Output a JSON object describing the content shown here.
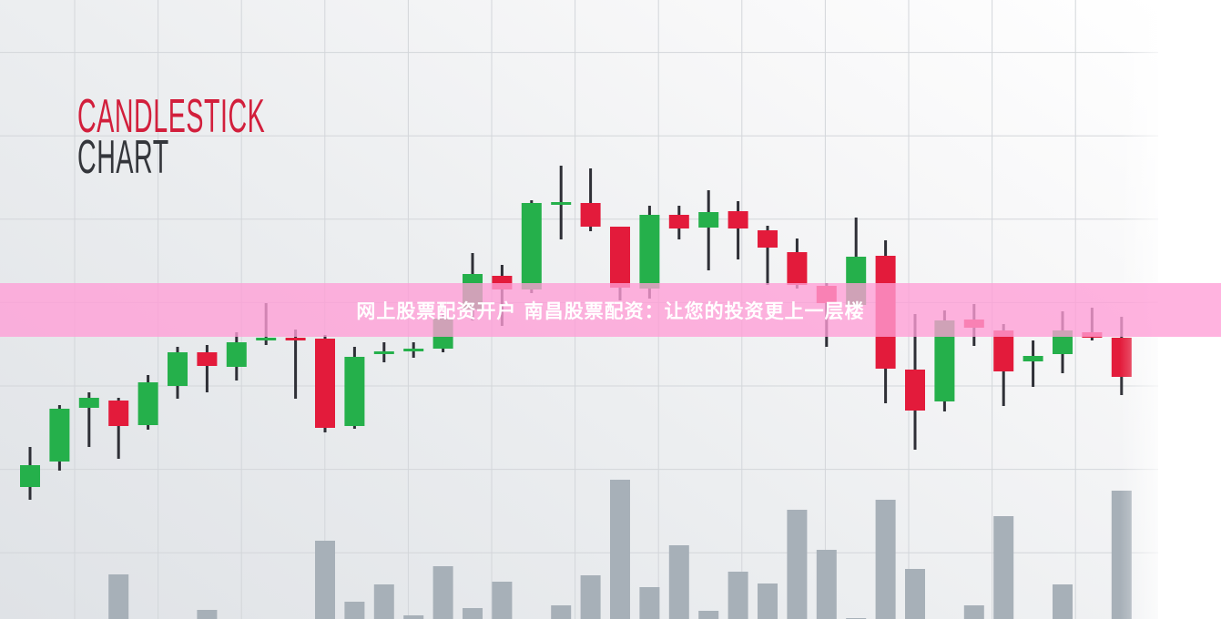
{
  "heading": {
    "line1": "CANDLESTICK",
    "line2": "CHART"
  },
  "banner": {
    "text": "网上股票配资开户 南昌股票配资：让您的投资更上一层楼"
  },
  "colors": {
    "up": "#25b04b",
    "down": "#e31b3b",
    "wick": "#2e2f36",
    "volume": "#a7b0b8",
    "grid": "#d3d6da",
    "title_red": "#d21f3c",
    "banner": "#ff9ed6"
  },
  "chart_data": {
    "type": "candlestick",
    "title": "CANDLESTICK CHART",
    "xlabel": "",
    "ylabel": "",
    "grid": true,
    "ylim": [
      0,
      70
    ],
    "candles": [
      {
        "o": 16.5,
        "h": 20.9,
        "l": 15.1,
        "c": 18.9
      },
      {
        "o": 19.3,
        "h": 25.5,
        "l": 18.3,
        "c": 25.1
      },
      {
        "o": 25.2,
        "h": 26.9,
        "l": 20.9,
        "c": 26.3
      },
      {
        "o": 26.0,
        "h": 26.3,
        "l": 19.6,
        "c": 23.2
      },
      {
        "o": 23.3,
        "h": 28.8,
        "l": 22.8,
        "c": 28.0
      },
      {
        "o": 27.6,
        "h": 31.9,
        "l": 26.2,
        "c": 31.3
      },
      {
        "o": 31.3,
        "h": 32.1,
        "l": 26.9,
        "c": 29.8
      },
      {
        "o": 29.7,
        "h": 33.5,
        "l": 28.2,
        "c": 32.4
      },
      {
        "o": 32.6,
        "h": 36.7,
        "l": 32.1,
        "c": 32.9
      },
      {
        "o": 32.9,
        "h": 33.8,
        "l": 26.2,
        "c": 32.6
      },
      {
        "o": 32.8,
        "h": 33.2,
        "l": 22.5,
        "c": 23.0
      },
      {
        "o": 23.2,
        "h": 31.9,
        "l": 22.9,
        "c": 30.8
      },
      {
        "o": 31.2,
        "h": 32.4,
        "l": 30.2,
        "c": 31.4
      },
      {
        "o": 31.5,
        "h": 32.4,
        "l": 30.7,
        "c": 31.7
      },
      {
        "o": 31.7,
        "h": 35.5,
        "l": 31.3,
        "c": 35.0
      },
      {
        "o": 36.0,
        "h": 42.2,
        "l": 34.8,
        "c": 39.9
      },
      {
        "o": 39.7,
        "h": 40.9,
        "l": 34.2,
        "c": 38.2
      },
      {
        "o": 38.2,
        "h": 48.0,
        "l": 37.8,
        "c": 47.7
      },
      {
        "o": 47.6,
        "h": 51.8,
        "l": 43.7,
        "c": 47.8
      },
      {
        "o": 47.7,
        "h": 51.5,
        "l": 44.6,
        "c": 45.1
      },
      {
        "o": 45.1,
        "h": 45.1,
        "l": 37.0,
        "c": 38.4
      },
      {
        "o": 38.3,
        "h": 47.4,
        "l": 37.2,
        "c": 46.4
      },
      {
        "o": 46.4,
        "h": 47.4,
        "l": 43.7,
        "c": 44.9
      },
      {
        "o": 45.0,
        "h": 49.1,
        "l": 40.3,
        "c": 46.7
      },
      {
        "o": 46.8,
        "h": 47.9,
        "l": 41.5,
        "c": 44.9
      },
      {
        "o": 44.7,
        "h": 45.2,
        "l": 38.7,
        "c": 42.8
      },
      {
        "o": 42.3,
        "h": 43.8,
        "l": 38.3,
        "c": 38.7
      },
      {
        "o": 38.6,
        "h": 38.9,
        "l": 31.9,
        "c": 36.7
      },
      {
        "o": 36.5,
        "h": 46.1,
        "l": 36.3,
        "c": 41.8
      },
      {
        "o": 41.9,
        "h": 43.6,
        "l": 25.7,
        "c": 29.5
      },
      {
        "o": 29.4,
        "h": 35.5,
        "l": 20.6,
        "c": 24.9
      },
      {
        "o": 25.9,
        "h": 35.9,
        "l": 24.8,
        "c": 34.8
      },
      {
        "o": 34.9,
        "h": 36.6,
        "l": 32.0,
        "c": 34.0
      },
      {
        "o": 33.7,
        "h": 34.4,
        "l": 25.4,
        "c": 29.2
      },
      {
        "o": 30.3,
        "h": 32.6,
        "l": 27.5,
        "c": 30.9
      },
      {
        "o": 31.1,
        "h": 35.8,
        "l": 29.0,
        "c": 33.7
      },
      {
        "o": 33.5,
        "h": 36.2,
        "l": 32.6,
        "c": 32.9
      },
      {
        "o": 32.9,
        "h": 35.2,
        "l": 26.6,
        "c": 28.6
      }
    ],
    "volume": [
      null,
      null,
      null,
      4.9,
      null,
      null,
      1.0,
      null,
      null,
      null,
      8.6,
      1.9,
      3.8,
      0.4,
      5.8,
      1.2,
      4.1,
      null,
      1.5,
      4.8,
      15.3,
      3.5,
      8.1,
      0.9,
      5.2,
      3.9,
      12.0,
      7.6,
      0.1,
      13.1,
      5.5,
      null,
      1.5,
      11.3,
      null,
      3.8,
      null,
      14.1
    ]
  }
}
